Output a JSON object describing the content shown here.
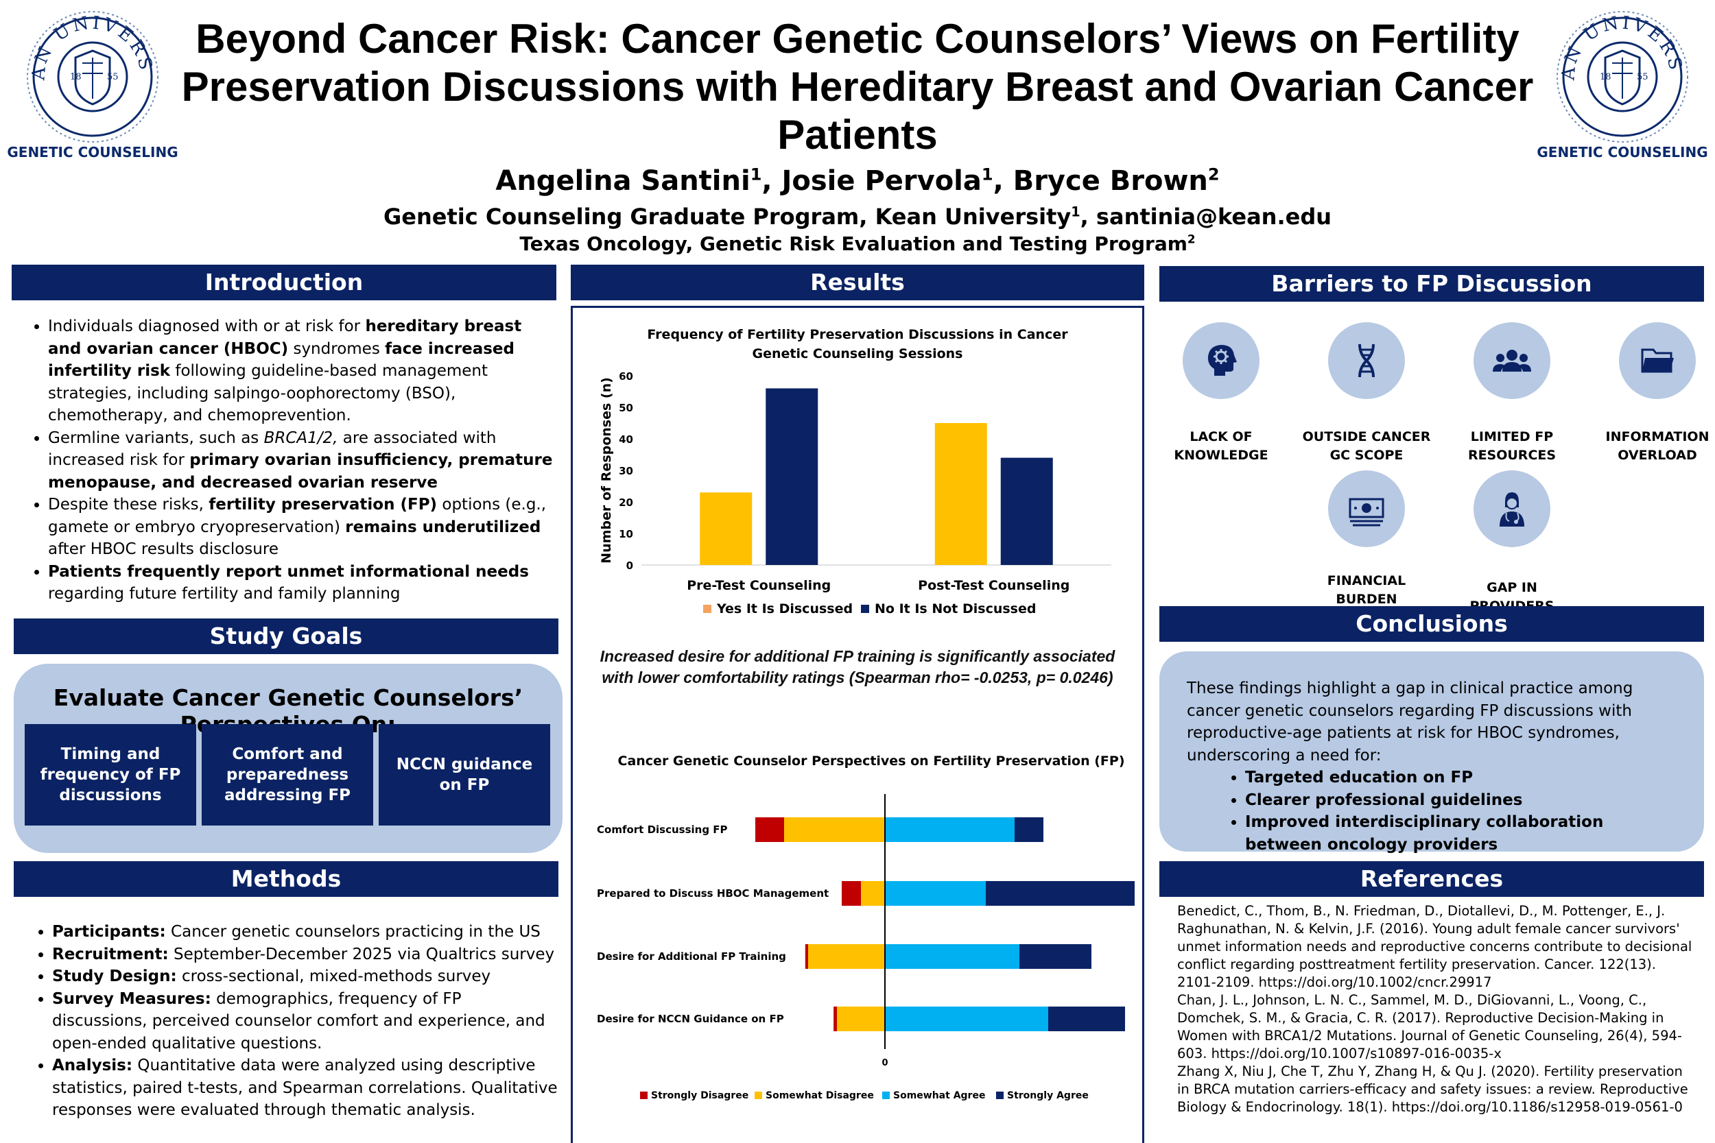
{
  "header": {
    "title": "Beyond Cancer Risk: Cancer Genetic Counselors’ Views on Fertility Preservation Discussions with Hereditary Breast and Ovarian Cancer Patients",
    "authors": [
      {
        "name": "Angelina Santini",
        "sup": "1"
      },
      {
        "name": "Josie Pervola",
        "sup": "1"
      },
      {
        "name": "Bryce Brown",
        "sup": "2"
      }
    ],
    "affiliation1": {
      "text": "Genetic Counseling Graduate Program, Kean University",
      "sup": "1",
      "email": "santinia@kean.edu"
    },
    "affiliation2": {
      "text": "Texas Oncology, Genetic Risk Evaluation and Testing Program",
      "sup": "2"
    },
    "logo_caption": "GENETIC COUNSELING",
    "logo_seal_text": "KEAN UNIVERSITY",
    "logo_year_left": "18",
    "logo_year_right": "55"
  },
  "introduction": {
    "heading": "Introduction",
    "bullets": [
      "Individuals diagnosed with or at risk for <b>hereditary breast and ovarian cancer (HBOC)</b> syndromes <b>face increased infertility risk</b> following guideline-based management strategies, including salpingo-oophorectomy (BSO), chemotherapy, and chemoprevention.",
      "Germline variants, such as <i>BRCA1/2,</i> are associated with increased risk for <b>primary ovarian insufficiency, premature menopause, and decreased ovarian reserve</b>",
      "Despite these risks, <b>fertility preservation (FP)</b> options (e.g., gamete or embryo cryopreservation) <b>remains underutilized</b> after HBOC results disclosure",
      "<b>Patients frequently report unmet informational needs</b> regarding future fertility and family planning"
    ]
  },
  "study_goals": {
    "heading": "Study Goals",
    "subtitle": "Evaluate Cancer Genetic Counselors’ Perspectives On:",
    "boxes": [
      "Timing and frequency of FP discussions",
      "Comfort and preparedness addressing FP",
      "NCCN guidance on FP"
    ]
  },
  "methods": {
    "heading": "Methods",
    "bullets": [
      "<b>Participants:</b> Cancer genetic counselors practicing in the US",
      "<b>Recruitment:</b> September-December 2025 via Qualtrics survey",
      "<b>Study Design:</b> cross-sectional, mixed-methods survey",
      "<b>Survey Measures:</b> demographics, frequency of FP discussions, perceived counselor comfort and experience, and open-ended qualitative questions.",
      "<b>Analysis:</b> Quantitative data were analyzed using descriptive statistics, paired t-tests, and Spearman correlations. Qualitative responses were evaluated through thematic analysis."
    ]
  },
  "results": {
    "heading": "Results",
    "finding": "Increased desire for additional FP training is significantly associated with lower comfortability ratings (Spearman rho= -0.0253, p= 0.0246)"
  },
  "chart_data": [
    {
      "type": "bar",
      "title": "Frequency of Fertility Preservation Discussions in Cancer Genetic Counseling Sessions",
      "categories": [
        "Pre-Test Counseling",
        "Post-Test Counseling"
      ],
      "series": [
        {
          "name": "Yes It Is Discussed",
          "values": [
            23,
            45
          ],
          "color": "#ffc000"
        },
        {
          "name": "No It Is Not Discussed",
          "values": [
            56,
            34
          ],
          "color": "#0b2364"
        }
      ],
      "ylabel": "Number of Responses (n)",
      "xlabel": "",
      "ylim": [
        0,
        60
      ],
      "yticks": [
        0,
        10,
        20,
        30,
        40,
        50,
        60
      ],
      "grid": false,
      "legend": "bottom",
      "legend_swatch_color": "#f4a460"
    },
    {
      "type": "bar",
      "orientation": "horizontal-diverging",
      "title": "Cancer Genetic Counselor Perspectives on Fertility Preservation (FP)",
      "categories": [
        "Comfort Discussing FP",
        "Prepared to Discuss HBOC Management",
        "Desire for Additional FP Training",
        "Desire for NCCN Guidance on FP"
      ],
      "series": [
        {
          "name": "Strongly Disagree",
          "values": [
            -6,
            -4,
            -0.6,
            -0.7
          ],
          "color": "#c00000"
        },
        {
          "name": "Somewhat Disagree",
          "values": [
            -21,
            -5,
            -16,
            -10
          ],
          "color": "#ffc000"
        },
        {
          "name": "Somewhat Agree",
          "values": [
            27,
            21,
            28,
            34
          ],
          "color": "#00b0f0"
        },
        {
          "name": "Strongly Agree",
          "values": [
            6,
            31,
            15,
            16
          ],
          "color": "#0b2364"
        }
      ],
      "xtick_labels": [
        "0"
      ],
      "legend": "bottom",
      "grid": false
    }
  ],
  "barriers": {
    "heading": "Barriers to FP Discussion",
    "items": [
      {
        "label_lines": [
          "LACK OF",
          "KNOWLEDGE"
        ],
        "icon": "head-gear-icon"
      },
      {
        "label_lines": [
          "OUTSIDE CANCER",
          "GC SCOPE"
        ],
        "icon": "dna-icon"
      },
      {
        "label_lines": [
          "LIMITED FP",
          "RESOURCES"
        ],
        "icon": "people-icon"
      },
      {
        "label_lines": [
          "INFORMATION",
          "OVERLOAD"
        ],
        "icon": "folder-icon"
      },
      {
        "label_lines": [
          "FINANCIAL",
          "BURDEN"
        ],
        "icon": "money-icon"
      },
      {
        "label_lines": [
          "GAP IN",
          "PROVIDERS"
        ],
        "icon": "doctor-icon"
      }
    ]
  },
  "conclusions": {
    "heading": "Conclusions",
    "text": "These findings highlight a gap in clinical practice among cancer genetic counselors regarding FP discussions with reproductive-age patients at risk for HBOC syndromes, underscoring a need for:",
    "bullets": [
      "Targeted education on FP",
      "Clearer professional guidelines",
      "Improved interdisciplinary collaboration between oncology providers"
    ]
  },
  "references": {
    "heading": "References",
    "items": [
      "Benedict, C., Thom, B., N. Friedman, D., Diotallevi, D., M. Pottenger, E., J. Raghunathan, N. & Kelvin, J.F. (2016). Young adult female cancer survivors' unmet information needs and reproductive concerns contribute to decisional conflict regarding posttreatment fertility preservation. Cancer. 122(13). 2101-2109. https://doi.org/10.1002/cncr.29917",
      "Chan, J. L., Johnson, L. N. C., Sammel, M. D., DiGiovanni, L., Voong, C., Domchek, S. M., & Gracia, C. R. (2017). Reproductive Decision-Making in Women with BRCA1/2 Mutations. Journal of Genetic Counseling, 26(4), 594-603. https://doi.org/10.1007/s10897-016-0035-x",
      "Zhang X, Niu J, Che T, Zhu Y, Zhang H, & Qu J. (2020). Fertility preservation in BRCA mutation carriers-efficacy and safety issues: a review. Reproductive Biology & Endocrinology. 18(1). https://doi.org/10.1186/s12958-019-0561-0"
    ]
  },
  "colors": {
    "navy": "#0b2364",
    "panel": "#b7c9e3",
    "gold": "#ffc000",
    "sky": "#00b0f0",
    "red": "#c00000"
  }
}
